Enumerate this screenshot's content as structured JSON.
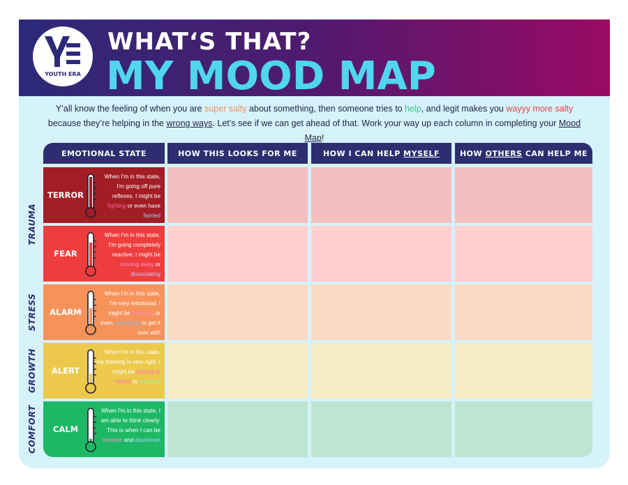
{
  "brand": {
    "name": "YOUTH ERA"
  },
  "title": {
    "line1": "WHAT‘S THAT?",
    "line2": "MY MOOD MAP"
  },
  "intro": {
    "p1": "Y’all know the feeling of when you are ",
    "salty": "super salty",
    "p2": " about something, then someone tries to ",
    "help": "help",
    "p3": ", and legit makes you ",
    "more_salty": "wayyy more salty",
    "p4": " because they’re helping in the ",
    "wrong_ways": "wrong ways",
    "p5": ". Let’s see if we can get ahead of that. Work your way up each column in completing your ",
    "mood_map": "Mood Map",
    "p6": "!"
  },
  "headers": {
    "state": "EMOTIONAL STATE",
    "looks": "HOW THIS LOOKS FOR ME",
    "myself_pre": "HOW I CAN HELP ",
    "myself_u": "MYSELF",
    "others_pre": "HOW ",
    "others_u": "OTHERS",
    "others_post": " CAN HELP ME"
  },
  "zones": {
    "trauma": "TRAUMA",
    "stress": "STRESS",
    "growth": "GROWTH",
    "comfort": "COMFORT"
  },
  "rows": [
    {
      "name": "TERROR",
      "color": "#a31d24",
      "cell": "#f2c0bf",
      "level": 1.0,
      "d1": "When I'm in this state, I'm going off pure reflexes. I might be ",
      "h1": "fighting",
      "h1c": "#ff5fa2",
      "d2": " or even have ",
      "h2": "fainted",
      "h2c": "#b5c8ff",
      "d3": ""
    },
    {
      "name": "FEAR",
      "color": "#ee3d3d",
      "cell": "#ffcfd0",
      "level": 0.78,
      "d1": "When I'm in this state, I'm going completely reactive. I might be ",
      "h1": "running away",
      "h1c": "#ff8fd0",
      "d2": " or ",
      "h2": "dissociating",
      "h2c": "#c8ccff",
      "d3": ""
    },
    {
      "name": "ALARM",
      "color": "#f6935b",
      "cell": "#fbd9c2",
      "level": 0.56,
      "d1": "When I'm in this state, I'm very emotional. I might be ",
      "h1": "freezing",
      "h1c": "#ff87c8",
      "d2": ", or even ",
      "h2": "complying",
      "h2c": "#84b6f8",
      "d3": " to get it over with"
    },
    {
      "name": "ALERT",
      "color": "#ecc94b",
      "cell": "#f7ebc4",
      "level": 0.34,
      "d1": "When I'm in this state, my thinking is very rigid. I might be ",
      "h1": "looking to",
      "h1c": "#ff70c4",
      "d2": " ",
      "h2": "others",
      "h2c": "#ff70c4",
      "d3": " or ",
      "h3": "avoiding",
      "h3c": "#a6ee9c"
    },
    {
      "name": "CALM",
      "color": "#1eb865",
      "cell": "#bde6d2",
      "level": 0.14,
      "d1": "When I'm in this state, I am able to think clearly. This is when I can be ",
      "h1": "creative",
      "h1c": "#ff8fd8",
      "d2": " and ",
      "h2": "daydream",
      "h2c": "#9fd8ff",
      "d3": ""
    }
  ]
}
